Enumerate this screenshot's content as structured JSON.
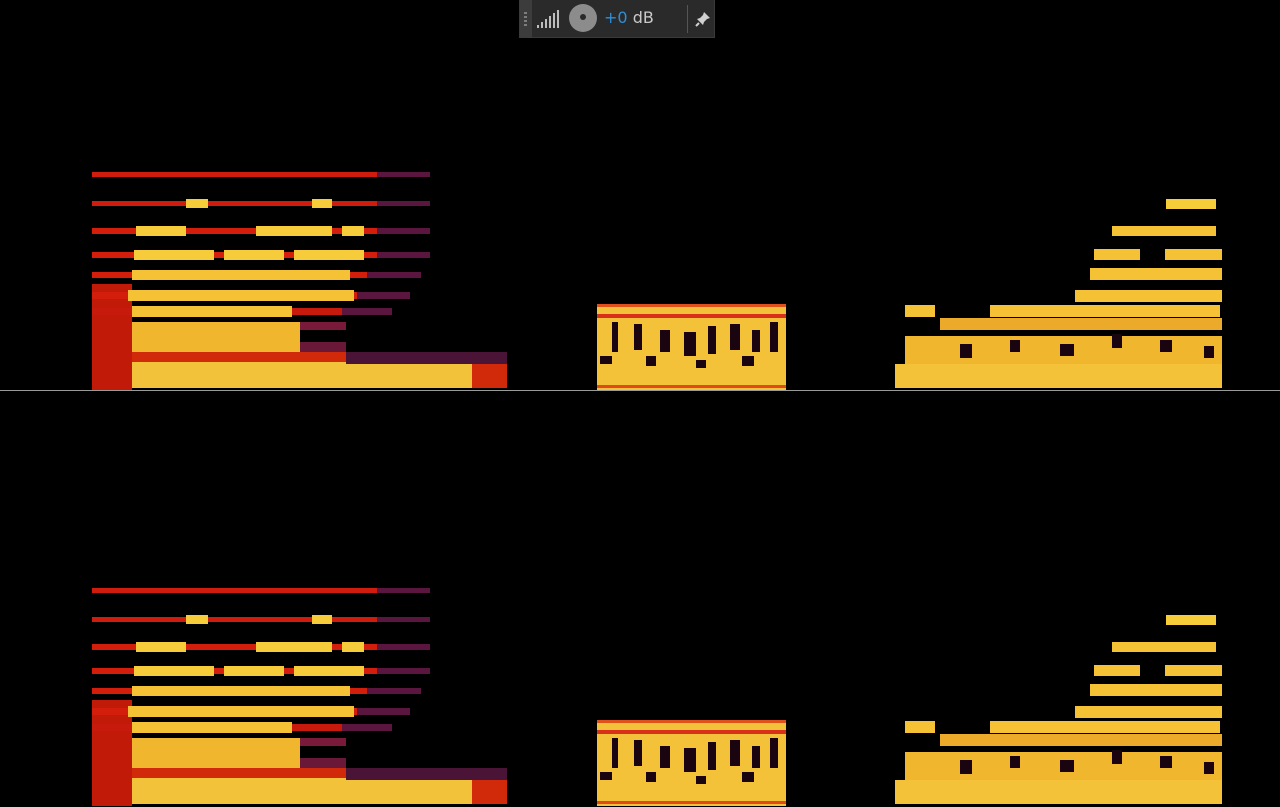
{
  "gain": {
    "value": "+0",
    "unit": "dB"
  },
  "colors": {
    "accent": "#2e8fd8",
    "panel": "#2a2a2a",
    "divider": "#9a9a9a"
  },
  "icons": {
    "level": "level-meter-icon",
    "knob": "gain-knob-icon",
    "pin": "pin-icon"
  }
}
